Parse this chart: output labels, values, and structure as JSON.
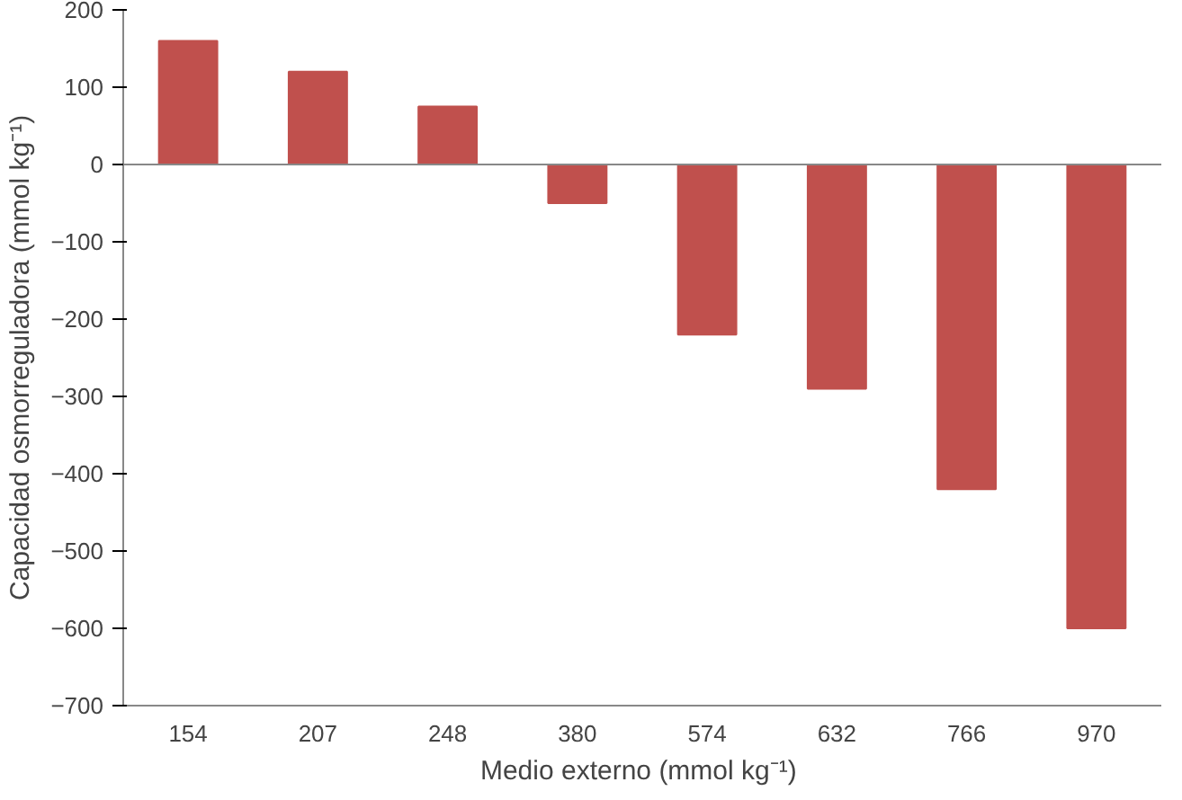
{
  "chart_data": {
    "type": "bar",
    "xlabel": "Medio externo  (mmol kg⁻¹)",
    "ylabel": "Capacidad osmorreguladora (mmol kg⁻¹)",
    "categories": [
      "154",
      "207",
      "248",
      "380",
      "574",
      "632",
      "766",
      "970"
    ],
    "values": [
      160,
      120,
      75,
      -50,
      -220,
      -290,
      -420,
      -600
    ],
    "color": "#c0504d",
    "ylim": [
      -700,
      200
    ],
    "yticks": [
      -700,
      -600,
      -500,
      -400,
      -300,
      -200,
      -100,
      0,
      100,
      200
    ],
    "grid": false,
    "ref_lines": [
      {
        "axis": "y",
        "value": 0
      }
    ]
  }
}
